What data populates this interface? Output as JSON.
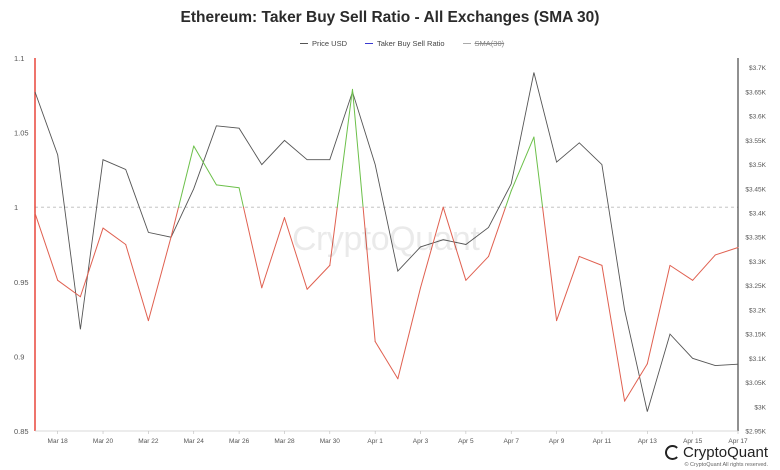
{
  "chart_data": {
    "type": "line",
    "title": "Ethereum: Taker Buy Sell Ratio - All Exchanges (SMA 30)",
    "x": [
      "Mar 17",
      "Mar 18",
      "Mar 19",
      "Mar 20",
      "Mar 21",
      "Mar 22",
      "Mar 23",
      "Mar 24",
      "Mar 25",
      "Mar 26",
      "Mar 27",
      "Mar 28",
      "Mar 29",
      "Mar 30",
      "Mar 31",
      "Apr 1",
      "Apr 2",
      "Apr 3",
      "Apr 4",
      "Apr 5",
      "Apr 6",
      "Apr 7",
      "Apr 8",
      "Apr 9",
      "Apr 10",
      "Apr 11",
      "Apr 12",
      "Apr 13",
      "Apr 14",
      "Apr 15",
      "Apr 16",
      "Apr 17"
    ],
    "x_tick_labels": [
      "Mar 18",
      "Mar 20",
      "Mar 22",
      "Mar 24",
      "Mar 26",
      "Mar 28",
      "Mar 30",
      "Apr 1",
      "Apr 3",
      "Apr 5",
      "Apr 7",
      "Apr 9",
      "Apr 11",
      "Apr 13",
      "Apr 15",
      "Apr 17"
    ],
    "series": [
      {
        "name": "Price USD",
        "axis": "right",
        "color": "#555555",
        "values": [
          3650,
          3520,
          3160,
          3510,
          3490,
          3360,
          3350,
          3450,
          3580,
          3575,
          3500,
          3550,
          3510,
          3510,
          3650,
          3500,
          3280,
          3330,
          3345,
          3335,
          3370,
          3460,
          3690,
          3505,
          3545,
          3500,
          3200,
          2990,
          3150,
          3100,
          3085,
          3088
        ]
      },
      {
        "name": "Taker Buy Sell Ratio",
        "axis": "left",
        "color_below": "#e06050",
        "color_above": "#6cc04a",
        "threshold": 1,
        "values": [
          0.996,
          0.951,
          0.94,
          0.986,
          0.975,
          0.924,
          0.98,
          1.041,
          1.015,
          1.013,
          0.946,
          0.993,
          0.945,
          0.961,
          1.079,
          0.91,
          0.885,
          0.946,
          1.0,
          0.951,
          0.967,
          1.011,
          1.047,
          0.924,
          0.967,
          0.961,
          0.87,
          0.895,
          0.961,
          0.951,
          0.968,
          0.973
        ]
      }
    ],
    "legend": [
      "Price USD",
      "Taker Buy Sell Ratio",
      "SMA(30)"
    ],
    "legend_placement": "top",
    "y_left": {
      "ylim": [
        0.85,
        1.1
      ],
      "ticks": [
        "0.85",
        "0.9",
        "0.95",
        "1",
        "1.05",
        "1.1"
      ]
    },
    "y_right": {
      "ylim": [
        2950,
        3720
      ],
      "ticks": [
        "$2.95K",
        "$3K",
        "$3.05K",
        "$3.1K",
        "$3.15K",
        "$3.2K",
        "$3.25K",
        "$3.3K",
        "$3.35K",
        "$3.4K",
        "$3.45K",
        "$3.5K",
        "$3.55K",
        "$3.6K",
        "$3.65K",
        "$3.7K"
      ]
    },
    "reference_line": 1,
    "grid": false,
    "colors": {
      "price": "#555555",
      "ratio_below": "#e06050",
      "ratio_above": "#6cc04a",
      "left_axis_line": "#e8473c",
      "right_axis_line": "#222222",
      "legend_ratio": "#3a3ad0",
      "legend_sma": "#aaaaaa"
    }
  },
  "watermark": "CryptoQuant",
  "brand": "CryptoQuant",
  "copyright": "© CryptoQuant All rights reserved."
}
